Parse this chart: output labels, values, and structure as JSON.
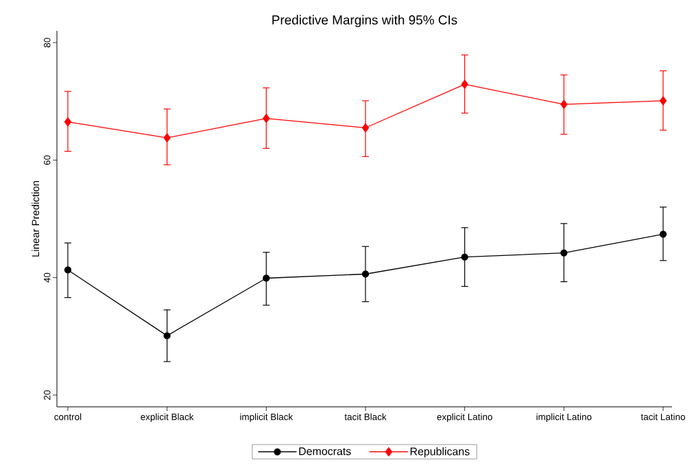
{
  "chart_data": {
    "type": "line",
    "title": "Predictive Margins with 95% CIs",
    "ylabel": "Linear Prediction",
    "categories": [
      "control",
      "explicit Black",
      "implicit Black",
      "tacit Black",
      "explicit Latino",
      "implicit Latino",
      "tacit Latino"
    ],
    "series": [
      {
        "name": "Democrats",
        "color": "#000000",
        "marker": "circle",
        "values": [
          41.3,
          30.1,
          39.9,
          40.6,
          43.5,
          44.2,
          47.4
        ],
        "errors": [
          [
            36.6,
            45.9
          ],
          [
            25.7,
            34.5
          ],
          [
            35.3,
            44.3
          ],
          [
            35.9,
            45.3
          ],
          [
            38.5,
            48.5
          ],
          [
            39.3,
            49.2
          ],
          [
            42.9,
            52.0
          ]
        ]
      },
      {
        "name": "Republicans",
        "color": "#ff0000",
        "marker": "diamond",
        "values": [
          66.5,
          63.8,
          67.1,
          65.5,
          72.9,
          69.5,
          70.1
        ],
        "errors": [
          [
            61.5,
            71.7
          ],
          [
            59.2,
            68.7
          ],
          [
            62.0,
            72.3
          ],
          [
            60.6,
            70.1
          ],
          [
            68.0,
            77.9
          ],
          [
            64.4,
            74.5
          ],
          [
            65.1,
            75.2
          ]
        ]
      }
    ],
    "ylim": [
      18,
      82
    ],
    "yticks": [
      20,
      40,
      60,
      80
    ],
    "grid": false,
    "legend": "bottom",
    "line_style": "solid"
  }
}
